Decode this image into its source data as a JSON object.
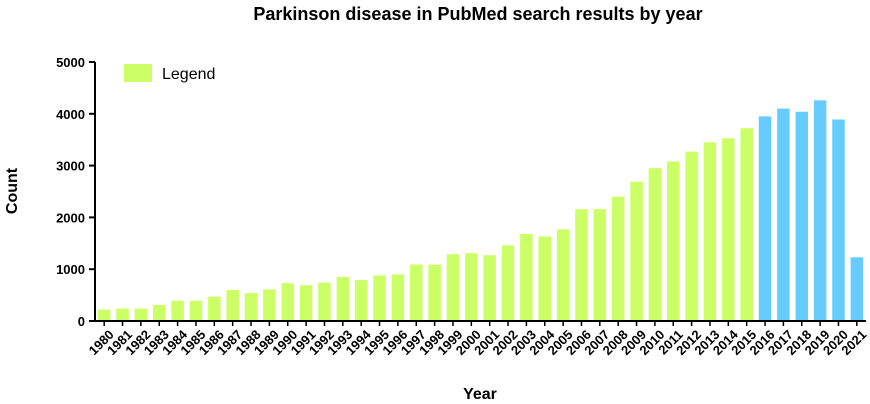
{
  "chart_data": {
    "type": "bar",
    "title": "Parkinson disease in PubMed search results by year",
    "xlabel": "Year",
    "ylabel": "Count",
    "ylim": [
      0,
      5000
    ],
    "yticks": [
      0,
      1000,
      2000,
      3000,
      4000,
      5000
    ],
    "grid": false,
    "legend": {
      "label": "Legend",
      "placement": "top-left"
    },
    "categories": [
      "1980",
      "1981",
      "1982",
      "1983",
      "1984",
      "1985",
      "1986",
      "1987",
      "1988",
      "1989",
      "1990",
      "1991",
      "1992",
      "1993",
      "1994",
      "1995",
      "1996",
      "1997",
      "1998",
      "1999",
      "2000",
      "2001",
      "2002",
      "2003",
      "2004",
      "2005",
      "2006",
      "2007",
      "2008",
      "2009",
      "2010",
      "2011",
      "2012",
      "2013",
      "2014",
      "2015",
      "2016",
      "2017",
      "2018",
      "2019",
      "2020",
      "2021"
    ],
    "values": [
      220,
      240,
      240,
      310,
      390,
      390,
      470,
      600,
      540,
      610,
      730,
      690,
      740,
      850,
      790,
      880,
      900,
      1090,
      1090,
      1290,
      1310,
      1270,
      1460,
      1680,
      1630,
      1770,
      2160,
      2160,
      2400,
      2690,
      2950,
      3080,
      3270,
      3450,
      3530,
      3720,
      3950,
      4100,
      4040,
      4260,
      3890,
      1230
    ],
    "colors": {
      "default": "#CCFF66",
      "highlight": "#66CCFF",
      "axis": "#000000"
    },
    "highlight_from": "2016"
  }
}
